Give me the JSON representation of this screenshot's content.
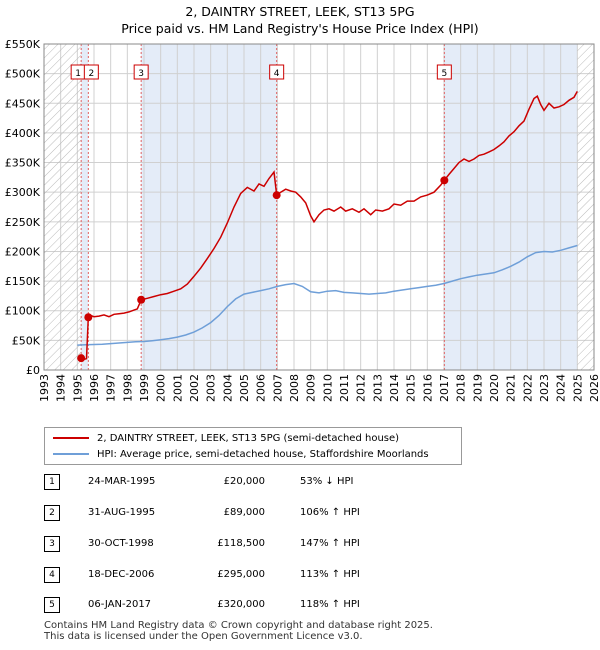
{
  "chart_data": {
    "type": "line",
    "title": "2, DAINTRY STREET, LEEK, ST13 5PG",
    "subtitle": "Price paid vs. HM Land Registry's House Price Index (HPI)",
    "xlabel": "",
    "ylabel": "",
    "xlim": [
      1993,
      2026
    ],
    "ylim": [
      0,
      550000
    ],
    "x_ticks": [
      1993,
      1994,
      1995,
      1996,
      1997,
      1998,
      1999,
      2000,
      2001,
      2002,
      2003,
      2004,
      2005,
      2006,
      2007,
      2008,
      2009,
      2010,
      2011,
      2012,
      2013,
      2014,
      2015,
      2016,
      2017,
      2018,
      2019,
      2020,
      2021,
      2022,
      2023,
      2024,
      2025,
      2026
    ],
    "y_ticks": [
      {
        "value": 0,
        "label": "£0"
      },
      {
        "value": 50000,
        "label": "£50K"
      },
      {
        "value": 100000,
        "label": "£100K"
      },
      {
        "value": 150000,
        "label": "£150K"
      },
      {
        "value": 200000,
        "label": "£200K"
      },
      {
        "value": 250000,
        "label": "£250K"
      },
      {
        "value": 300000,
        "label": "£300K"
      },
      {
        "value": 350000,
        "label": "£350K"
      },
      {
        "value": 400000,
        "label": "£400K"
      },
      {
        "value": 450000,
        "label": "£450K"
      },
      {
        "value": 500000,
        "label": "£500K"
      },
      {
        "value": 550000,
        "label": "£550K"
      }
    ],
    "grid": true,
    "legend_position": "bottom-left",
    "hatched_regions": [
      [
        1993,
        1995.23
      ],
      [
        2025.0,
        2026
      ]
    ],
    "shaded_bands": [
      [
        1995.23,
        1995.66
      ],
      [
        1998.83,
        2006.96
      ],
      [
        2017.02,
        2025.0
      ]
    ],
    "series": [
      {
        "name": "2, DAINTRY STREET, LEEK, ST13 5PG (semi-detached house)",
        "color": "#cc0000",
        "points": [
          [
            1995.23,
            20000
          ],
          [
            1995.4,
            18000
          ],
          [
            1995.55,
            19000
          ],
          [
            1995.66,
            89000
          ],
          [
            1995.8,
            92000
          ],
          [
            1996.0,
            90000
          ],
          [
            1996.3,
            91000
          ],
          [
            1996.6,
            93000
          ],
          [
            1996.9,
            90000
          ],
          [
            1997.2,
            94000
          ],
          [
            1997.5,
            95000
          ],
          [
            1997.8,
            96000
          ],
          [
            1998.1,
            98000
          ],
          [
            1998.4,
            101000
          ],
          [
            1998.6,
            103000
          ],
          [
            1998.83,
            118500
          ],
          [
            1999.2,
            121000
          ],
          [
            1999.6,
            124000
          ],
          [
            2000.0,
            127000
          ],
          [
            2000.4,
            129000
          ],
          [
            2000.8,
            133000
          ],
          [
            2001.2,
            137000
          ],
          [
            2001.6,
            145000
          ],
          [
            2002.0,
            158000
          ],
          [
            2002.4,
            172000
          ],
          [
            2002.8,
            188000
          ],
          [
            2003.2,
            205000
          ],
          [
            2003.6,
            224000
          ],
          [
            2004.0,
            248000
          ],
          [
            2004.4,
            275000
          ],
          [
            2004.8,
            298000
          ],
          [
            2005.2,
            308000
          ],
          [
            2005.6,
            302000
          ],
          [
            2005.9,
            314000
          ],
          [
            2006.2,
            310000
          ],
          [
            2006.5,
            323000
          ],
          [
            2006.8,
            334000
          ],
          [
            2006.96,
            295000
          ],
          [
            2007.2,
            300000
          ],
          [
            2007.5,
            305000
          ],
          [
            2007.8,
            302000
          ],
          [
            2008.1,
            300000
          ],
          [
            2008.4,
            292000
          ],
          [
            2008.7,
            282000
          ],
          [
            2009.0,
            260000
          ],
          [
            2009.2,
            250000
          ],
          [
            2009.5,
            262000
          ],
          [
            2009.8,
            270000
          ],
          [
            2010.1,
            272000
          ],
          [
            2010.4,
            268000
          ],
          [
            2010.8,
            275000
          ],
          [
            2011.1,
            268000
          ],
          [
            2011.5,
            272000
          ],
          [
            2011.9,
            266000
          ],
          [
            2012.2,
            272000
          ],
          [
            2012.6,
            262000
          ],
          [
            2012.9,
            270000
          ],
          [
            2013.3,
            268000
          ],
          [
            2013.7,
            272000
          ],
          [
            2014.0,
            280000
          ],
          [
            2014.4,
            278000
          ],
          [
            2014.8,
            285000
          ],
          [
            2015.2,
            285000
          ],
          [
            2015.6,
            292000
          ],
          [
            2016.0,
            295000
          ],
          [
            2016.4,
            300000
          ],
          [
            2016.8,
            312000
          ],
          [
            2017.02,
            320000
          ],
          [
            2017.3,
            330000
          ],
          [
            2017.6,
            340000
          ],
          [
            2017.9,
            350000
          ],
          [
            2018.2,
            356000
          ],
          [
            2018.5,
            352000
          ],
          [
            2018.8,
            356000
          ],
          [
            2019.1,
            362000
          ],
          [
            2019.4,
            364000
          ],
          [
            2019.7,
            368000
          ],
          [
            2020.0,
            372000
          ],
          [
            2020.3,
            378000
          ],
          [
            2020.6,
            385000
          ],
          [
            2020.9,
            395000
          ],
          [
            2021.2,
            402000
          ],
          [
            2021.5,
            412000
          ],
          [
            2021.8,
            420000
          ],
          [
            2022.1,
            440000
          ],
          [
            2022.4,
            458000
          ],
          [
            2022.6,
            462000
          ],
          [
            2022.8,
            448000
          ],
          [
            2023.0,
            438000
          ],
          [
            2023.3,
            450000
          ],
          [
            2023.6,
            442000
          ],
          [
            2023.9,
            444000
          ],
          [
            2024.2,
            448000
          ],
          [
            2024.5,
            455000
          ],
          [
            2024.8,
            460000
          ],
          [
            2025.0,
            470000
          ]
        ]
      },
      {
        "name": "HPI: Average price, semi-detached house, Staffordshire Moorlands",
        "color": "#6f9fd8",
        "points": [
          [
            1995.0,
            42000
          ],
          [
            1995.5,
            42500
          ],
          [
            1996.0,
            43000
          ],
          [
            1996.5,
            43500
          ],
          [
            1997.0,
            44500
          ],
          [
            1997.5,
            45500
          ],
          [
            1998.0,
            46500
          ],
          [
            1998.5,
            47500
          ],
          [
            1999.0,
            48000
          ],
          [
            1999.5,
            49500
          ],
          [
            2000.0,
            51000
          ],
          [
            2000.5,
            53000
          ],
          [
            2001.0,
            55500
          ],
          [
            2001.5,
            59000
          ],
          [
            2002.0,
            64000
          ],
          [
            2002.5,
            71000
          ],
          [
            2003.0,
            80000
          ],
          [
            2003.5,
            92000
          ],
          [
            2004.0,
            107000
          ],
          [
            2004.5,
            120000
          ],
          [
            2005.0,
            128000
          ],
          [
            2005.5,
            131000
          ],
          [
            2006.0,
            134000
          ],
          [
            2006.5,
            137000
          ],
          [
            2007.0,
            141000
          ],
          [
            2007.5,
            144000
          ],
          [
            2008.0,
            146000
          ],
          [
            2008.5,
            141000
          ],
          [
            2009.0,
            132000
          ],
          [
            2009.5,
            130000
          ],
          [
            2010.0,
            133000
          ],
          [
            2010.5,
            134000
          ],
          [
            2011.0,
            131000
          ],
          [
            2011.5,
            130000
          ],
          [
            2012.0,
            129000
          ],
          [
            2012.5,
            128000
          ],
          [
            2013.0,
            129000
          ],
          [
            2013.5,
            130000
          ],
          [
            2014.0,
            133000
          ],
          [
            2014.5,
            135000
          ],
          [
            2015.0,
            137000
          ],
          [
            2015.5,
            139000
          ],
          [
            2016.0,
            141000
          ],
          [
            2016.5,
            143000
          ],
          [
            2017.0,
            146000
          ],
          [
            2017.5,
            150000
          ],
          [
            2018.0,
            154000
          ],
          [
            2018.5,
            157000
          ],
          [
            2019.0,
            160000
          ],
          [
            2019.5,
            162000
          ],
          [
            2020.0,
            164000
          ],
          [
            2020.5,
            169000
          ],
          [
            2021.0,
            175000
          ],
          [
            2021.5,
            182000
          ],
          [
            2022.0,
            191000
          ],
          [
            2022.5,
            198000
          ],
          [
            2023.0,
            200000
          ],
          [
            2023.5,
            199000
          ],
          [
            2024.0,
            202000
          ],
          [
            2024.5,
            206000
          ],
          [
            2025.0,
            210000
          ]
        ]
      }
    ],
    "sale_markers": [
      {
        "label": "1",
        "x": 1995.23,
        "value": 20000
      },
      {
        "label": "2",
        "x": 1995.66,
        "value": 89000
      },
      {
        "label": "3",
        "x": 1998.83,
        "value": 118500
      },
      {
        "label": "4",
        "x": 2006.96,
        "value": 295000
      },
      {
        "label": "5",
        "x": 2017.02,
        "value": 320000
      }
    ]
  },
  "legend": {
    "property": "2, DAINTRY STREET, LEEK, ST13 5PG (semi-detached house)",
    "hpi": "HPI: Average price, semi-detached house, Staffordshire Moorlands",
    "property_color": "#cc0000",
    "hpi_color": "#6f9fd8"
  },
  "transactions": [
    {
      "num": "1",
      "date": "24-MAR-1995",
      "price": "£20,000",
      "hpi": "53% ↓ HPI"
    },
    {
      "num": "2",
      "date": "31-AUG-1995",
      "price": "£89,000",
      "hpi": "106% ↑ HPI"
    },
    {
      "num": "3",
      "date": "30-OCT-1998",
      "price": "£118,500",
      "hpi": "147% ↑ HPI"
    },
    {
      "num": "4",
      "date": "18-DEC-2006",
      "price": "£295,000",
      "hpi": "113% ↑ HPI"
    },
    {
      "num": "5",
      "date": "06-JAN-2017",
      "price": "£320,000",
      "hpi": "118% ↑ HPI"
    }
  ],
  "footer": {
    "line1": "Contains HM Land Registry data © Crown copyright and database right 2025.",
    "line2": "This data is licensed under the Open Government Licence v3.0."
  }
}
